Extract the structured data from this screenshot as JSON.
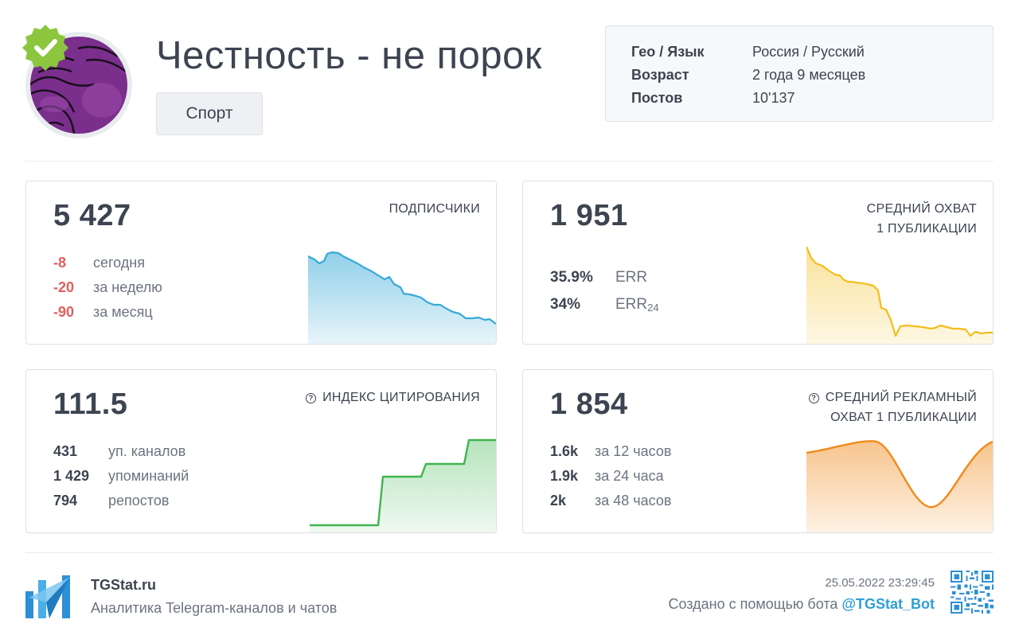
{
  "channel": {
    "title": "Честность - не порок",
    "category": "Спорт"
  },
  "info": {
    "geo_label": "Гео / Язык",
    "geo_value": "Россия / Русский",
    "age_label": "Возраст",
    "age_value": "2 года 9 месяцев",
    "posts_label": "Постов",
    "posts_value": "10'137"
  },
  "subscribers": {
    "value": "5 427",
    "label": "ПОДПИСЧИКИ",
    "rows": [
      {
        "num": "-8",
        "text": "сегодня"
      },
      {
        "num": "-20",
        "text": "за неделю"
      },
      {
        "num": "-90",
        "text": "за месяц"
      }
    ],
    "color": "#36a9d6"
  },
  "reach": {
    "value": "1 951",
    "label_line1": "СРЕДНИЙ ОХВАТ",
    "label_line2": "1 ПУБЛИКАЦИИ",
    "err_num": "35.9%",
    "err_text": "ERR",
    "err24_num": "34%",
    "err24_text": "ERR",
    "err24_sub": "24",
    "color": "#f2be1c"
  },
  "citation": {
    "value": "111.5",
    "label": "ИНДЕКС ЦИТИРОВАНИЯ",
    "rows": [
      {
        "num": "431",
        "text": "уп. каналов"
      },
      {
        "num": "1 429",
        "text": "упоминаний"
      },
      {
        "num": "794",
        "text": "репостов"
      }
    ],
    "color": "#3fb54f"
  },
  "ad_reach": {
    "value": "1 854",
    "label_line1": "СРЕДНИЙ РЕКЛАМНЫЙ",
    "label_line2": "ОХВАТ 1 ПУБЛИКАЦИИ",
    "rows": [
      {
        "num": "1.6k",
        "text": "за 12 часов"
      },
      {
        "num": "1.9k",
        "text": "за 24 часа"
      },
      {
        "num": "2k",
        "text": "за 48 часов"
      }
    ],
    "color": "#f08a1c"
  },
  "footer": {
    "brand": "TGStat.ru",
    "tagline": "Аналитика Telegram-каналов и чатов",
    "date": "25.05.2022 23:29:45",
    "made_prefix": "Создано с помощью бота",
    "bot": "@TGStat_Bot"
  }
}
